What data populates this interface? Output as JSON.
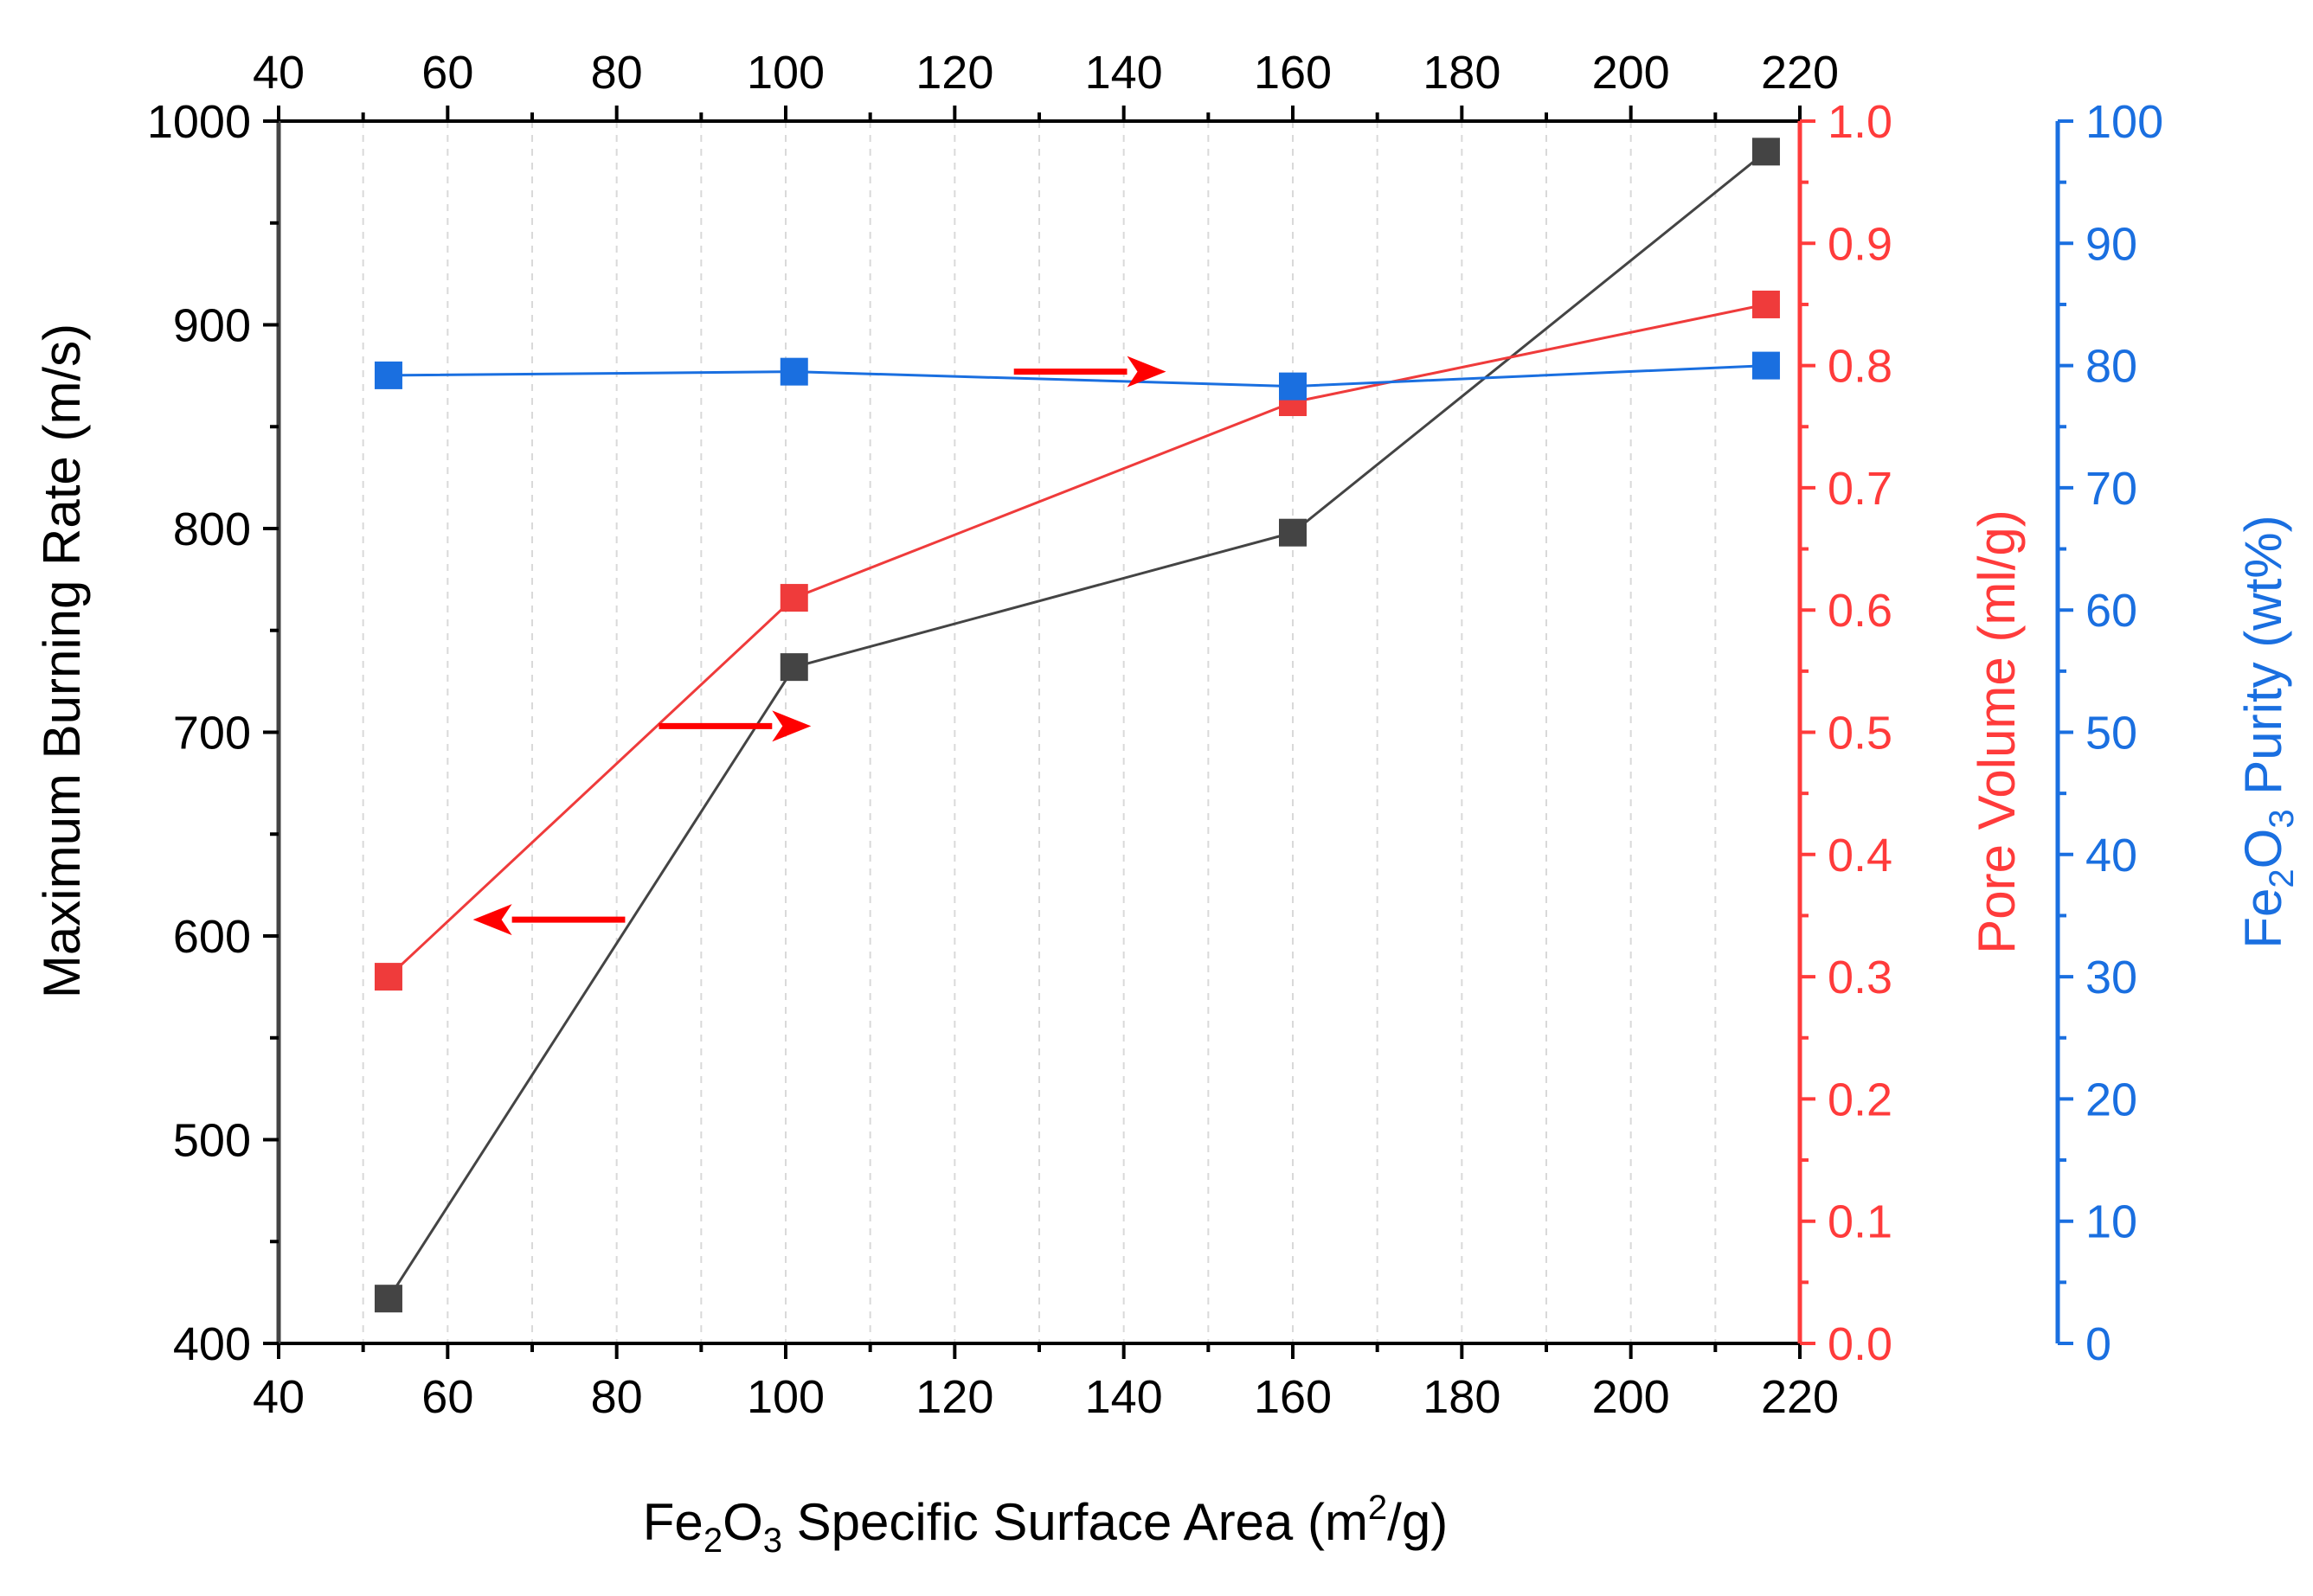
{
  "chart_data": {
    "type": "line",
    "x": [
      53,
      101,
      160,
      216
    ],
    "xlabel": {
      "prefix": "Fe",
      "sub1": "2",
      "mid": "O",
      "sub2": "3",
      "main": " Specific Surface Area (m",
      "sup": "2",
      "suffix": "/g)"
    },
    "xlim": [
      40,
      220
    ],
    "xticks": [
      40,
      60,
      80,
      100,
      120,
      140,
      160,
      180,
      200,
      220
    ],
    "top_xticks": [
      40,
      60,
      80,
      100,
      120,
      140,
      160,
      180,
      200,
      220
    ],
    "axes": {
      "left": {
        "label": "Maximum Burning Rate (m/s)",
        "ylim": [
          400,
          1000
        ],
        "ticks": [
          400,
          500,
          600,
          700,
          800,
          900,
          1000
        ],
        "color": "#000000"
      },
      "right1": {
        "label": "Pore Volume (ml/g)",
        "ylim": [
          0,
          1
        ],
        "ticks": [
          "0.0",
          "0.1",
          "0.2",
          "0.3",
          "0.4",
          "0.5",
          "0.6",
          "0.7",
          "0.8",
          "0.9",
          "1.0"
        ],
        "color": "#ff3b3b"
      },
      "right2": {
        "label": {
          "prefix": "Fe",
          "sub1": "2",
          "mid": "O",
          "sub2": "3",
          "suffix": " Purity (wt%)"
        },
        "ylim": [
          0,
          100
        ],
        "ticks": [
          0,
          10,
          20,
          30,
          40,
          50,
          60,
          70,
          80,
          90,
          100
        ],
        "color": "#1a6fe0"
      }
    },
    "series": [
      {
        "name": "Maximum Burning Rate",
        "axis": "left",
        "color": "#444444",
        "values": [
          422,
          732,
          798,
          985
        ]
      },
      {
        "name": "Pore Volume",
        "axis": "right1",
        "color": "#ef3b3b",
        "values": [
          0.3,
          0.61,
          0.77,
          0.85
        ]
      },
      {
        "name": "Fe2O3 Purity",
        "axis": "right2",
        "color": "#1a6fe0",
        "values": [
          79.2,
          79.5,
          78.3,
          80.0
        ]
      }
    ],
    "annotations": [
      {
        "type": "arrow",
        "direction": "left",
        "indicates_axis": "left",
        "x_from": 81,
        "x_to": 63,
        "y": 608,
        "y_axis": "left",
        "color": "#ff0000"
      },
      {
        "type": "arrow",
        "direction": "right",
        "indicates_axis": "right1",
        "x_from": 85,
        "x_to": 103,
        "y": 703,
        "y_axis": "left",
        "color": "#ff0000"
      },
      {
        "type": "arrow",
        "direction": "right",
        "indicates_axis": "right2",
        "x_from": 127,
        "x_to": 145,
        "y": 877,
        "y_axis": "left",
        "color": "#ff0000"
      }
    ],
    "grid": "vertical-dashed"
  }
}
